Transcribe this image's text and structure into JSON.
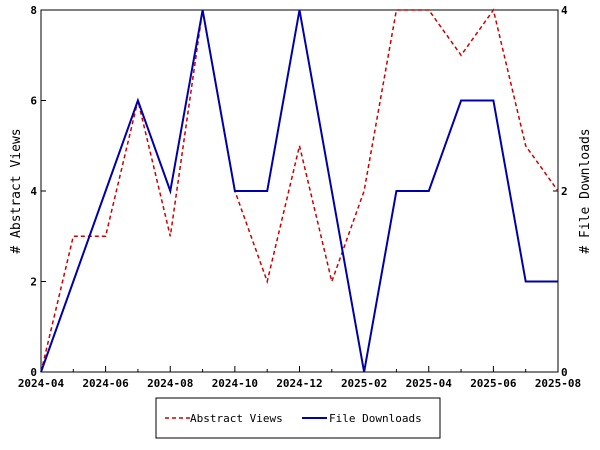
{
  "chart_data": {
    "type": "line",
    "xlabel": "",
    "ylabel_left": "# Abstract Views",
    "ylabel_right": "# File Downloads",
    "x": [
      "2024-04",
      "2024-05",
      "2024-06",
      "2024-07",
      "2024-08",
      "2024-09",
      "2024-10",
      "2024-11",
      "2024-12",
      "2025-01",
      "2025-02",
      "2025-03",
      "2025-04",
      "2025-05",
      "2025-06",
      "2025-07",
      "2025-08"
    ],
    "x_tick_labels": [
      "2024-04",
      "2024-06",
      "2024-08",
      "2024-10",
      "2024-12",
      "2025-02",
      "2025-04",
      "2025-06",
      "2025-08"
    ],
    "y_left_lim": [
      0,
      8
    ],
    "y_left_ticks": [
      0,
      2,
      4,
      6,
      8
    ],
    "y_right_lim": [
      0,
      4
    ],
    "y_right_ticks": [
      0,
      2,
      4
    ],
    "grid": false,
    "legend_placement": "bottom",
    "series": [
      {
        "name": "Abstract Views",
        "axis": "left",
        "color": "#cc0000",
        "style": "dashed",
        "values": [
          0,
          3,
          3,
          6,
          3,
          8,
          4,
          2,
          5,
          2,
          4,
          8,
          8,
          7,
          8,
          5,
          4
        ]
      },
      {
        "name": "File Downloads",
        "axis": "right",
        "color": "#0000aa",
        "style": "solid",
        "values": [
          0,
          1,
          2,
          3,
          2,
          4,
          2,
          2,
          4,
          2,
          0,
          2,
          2,
          3,
          3,
          1,
          1
        ]
      }
    ]
  }
}
